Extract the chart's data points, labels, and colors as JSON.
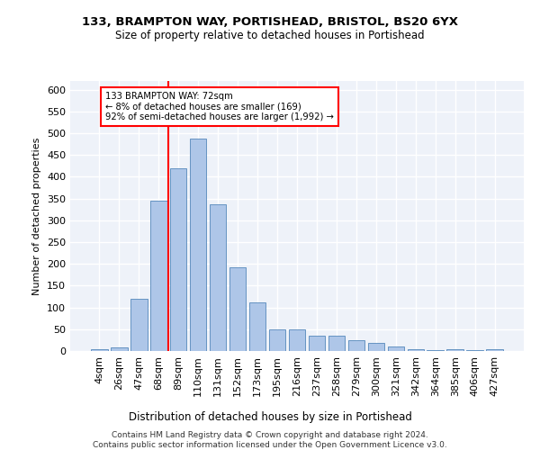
{
  "title_line1": "133, BRAMPTON WAY, PORTISHEAD, BRISTOL, BS20 6YX",
  "title_line2": "Size of property relative to detached houses in Portishead",
  "xlabel": "Distribution of detached houses by size in Portishead",
  "ylabel": "Number of detached properties",
  "categories": [
    "4sqm",
    "26sqm",
    "47sqm",
    "68sqm",
    "89sqm",
    "110sqm",
    "131sqm",
    "152sqm",
    "173sqm",
    "195sqm",
    "216sqm",
    "237sqm",
    "258sqm",
    "279sqm",
    "300sqm",
    "321sqm",
    "342sqm",
    "364sqm",
    "385sqm",
    "406sqm",
    "427sqm"
  ],
  "values": [
    5,
    8,
    120,
    345,
    420,
    487,
    337,
    193,
    112,
    50,
    50,
    35,
    35,
    25,
    18,
    10,
    5,
    3,
    5,
    3,
    5
  ],
  "bar_color": "#aec6e8",
  "bar_edge_color": "#5588bb",
  "vline_x": 3.5,
  "annotation_text": "133 BRAMPTON WAY: 72sqm\n← 8% of detached houses are smaller (169)\n92% of semi-detached houses are larger (1,992) →",
  "annotation_box_color": "white",
  "annotation_box_edge_color": "red",
  "vline_color": "red",
  "ylim": [
    0,
    620
  ],
  "yticks": [
    0,
    50,
    100,
    150,
    200,
    250,
    300,
    350,
    400,
    450,
    500,
    550,
    600
  ],
  "footer_line1": "Contains HM Land Registry data © Crown copyright and database right 2024.",
  "footer_line2": "Contains public sector information licensed under the Open Government Licence v3.0.",
  "background_color": "#eef2f9",
  "grid_color": "white"
}
